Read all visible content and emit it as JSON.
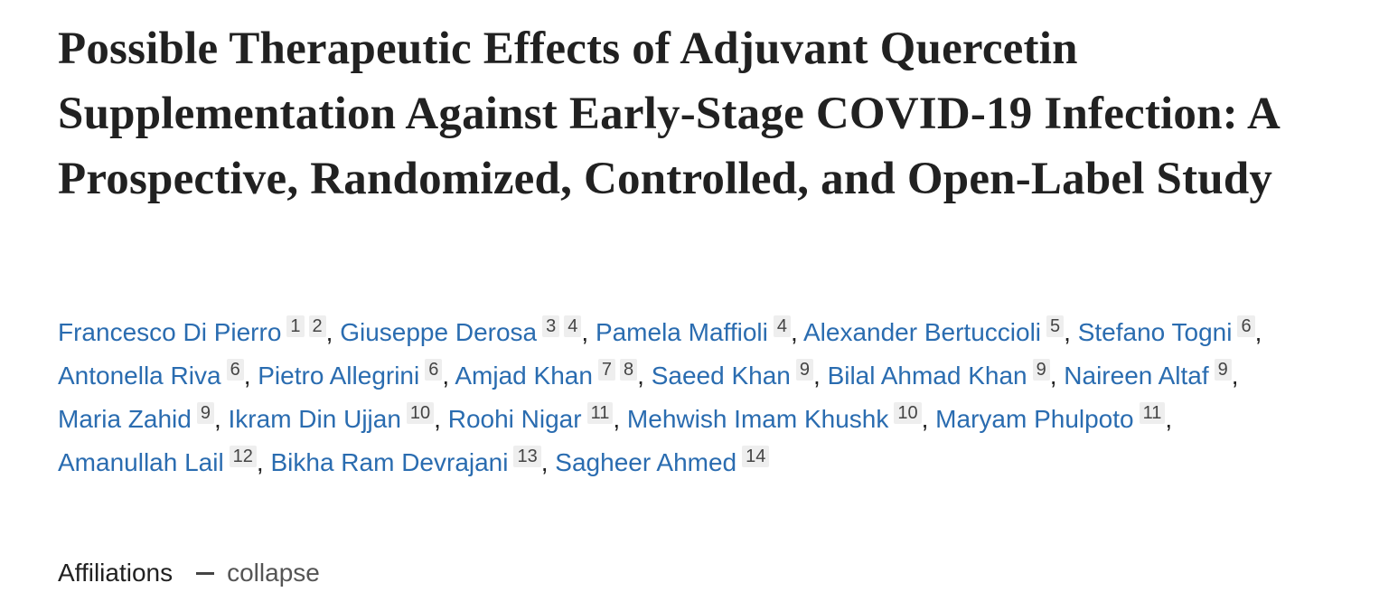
{
  "title": "Possible Therapeutic Effects of Adjuvant Quercetin Supplementation Against Early-Stage COVID-19 Infection: A Prospective, Randomized, Controlled, and Open-Label Study",
  "authors": [
    {
      "name": "Francesco Di Pierro",
      "affiliations": [
        1,
        2
      ]
    },
    {
      "name": "Giuseppe Derosa",
      "affiliations": [
        3,
        4
      ]
    },
    {
      "name": "Pamela Maffioli",
      "affiliations": [
        4
      ]
    },
    {
      "name": "Alexander Bertuccioli",
      "affiliations": [
        5
      ]
    },
    {
      "name": "Stefano Togni",
      "affiliations": [
        6
      ]
    },
    {
      "name": "Antonella Riva",
      "affiliations": [
        6
      ]
    },
    {
      "name": "Pietro Allegrini",
      "affiliations": [
        6
      ]
    },
    {
      "name": "Amjad Khan",
      "affiliations": [
        7,
        8
      ]
    },
    {
      "name": "Saeed Khan",
      "affiliations": [
        9
      ]
    },
    {
      "name": "Bilal Ahmad Khan",
      "affiliations": [
        9
      ]
    },
    {
      "name": "Naireen Altaf",
      "affiliations": [
        9
      ]
    },
    {
      "name": "Maria Zahid",
      "affiliations": [
        9
      ]
    },
    {
      "name": "Ikram Din Ujjan",
      "affiliations": [
        10
      ]
    },
    {
      "name": "Roohi Nigar",
      "affiliations": [
        11
      ]
    },
    {
      "name": "Mehwish Imam Khushk",
      "affiliations": [
        10
      ]
    },
    {
      "name": "Maryam Phulpoto",
      "affiliations": [
        11
      ]
    },
    {
      "name": "Amanullah Lail",
      "affiliations": [
        12
      ]
    },
    {
      "name": "Bikha Ram Devrajani",
      "affiliations": [
        13
      ]
    },
    {
      "name": "Sagheer Ahmed",
      "affiliations": [
        14
      ]
    }
  ],
  "author_separator": ",",
  "affiliations_toggle": {
    "label": "Affiliations",
    "action": "collapse"
  }
}
